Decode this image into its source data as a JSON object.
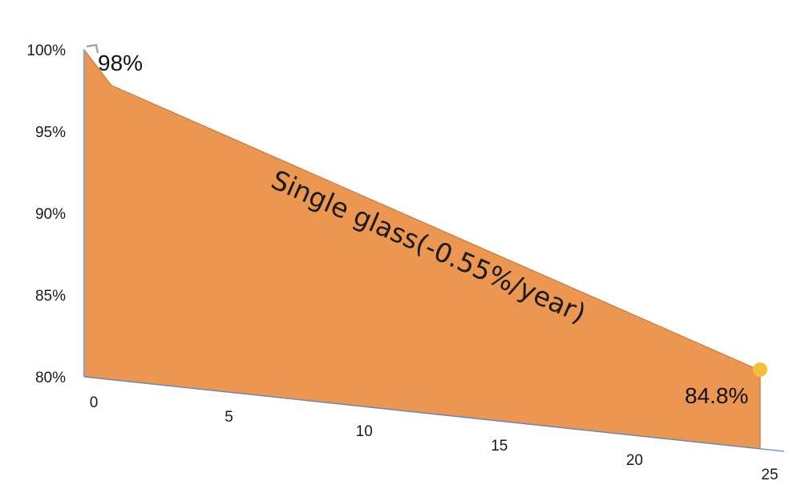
{
  "chart_data": {
    "type": "area",
    "title": "",
    "xlabel": "",
    "ylabel": "",
    "x": [
      0,
      1,
      25
    ],
    "series": [
      {
        "name": "Single glass(-0.55%/year)",
        "values": [
          100,
          98,
          84.8
        ]
      }
    ],
    "y_ticks": [
      "100%",
      "95%",
      "90%",
      "85%",
      "80%"
    ],
    "y_tick_values": [
      100,
      95,
      90,
      85,
      80
    ],
    "x_ticks": [
      "0",
      "5",
      "10",
      "15",
      "20",
      "25"
    ],
    "x_tick_values": [
      0,
      5,
      10,
      15,
      20,
      25
    ],
    "ylim": [
      80,
      100
    ],
    "xlim": [
      0,
      25
    ],
    "data_labels": [
      "98%",
      "84.8%"
    ],
    "grid": false,
    "legend": "none",
    "colors": {
      "area_fill": "#EB9752",
      "area_edge": "#C87A3C",
      "y_axis": "#9AA3B5",
      "x_axis": "#5B86C8",
      "end_marker": "#F3BE3C"
    }
  }
}
